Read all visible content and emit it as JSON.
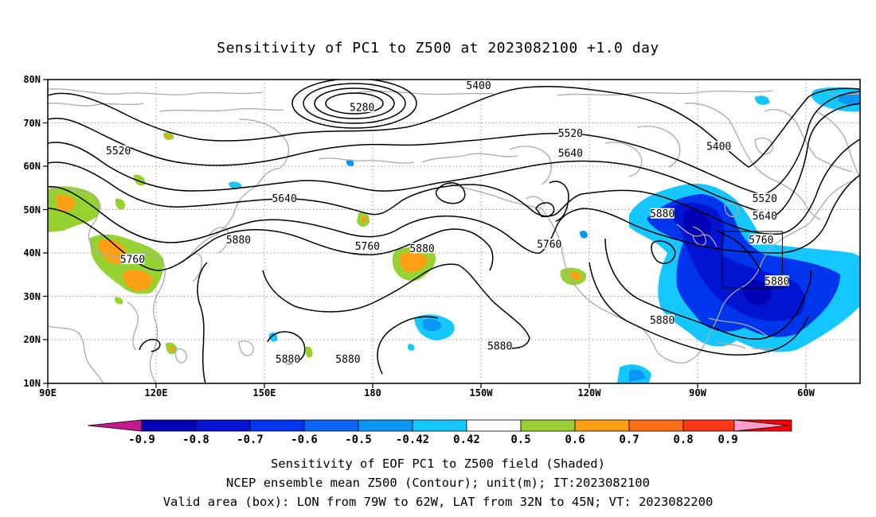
{
  "title": "Sensitivity of PC1 to Z500 at 2023082100 +1.0 day",
  "axes": {
    "lat_labels": [
      "80N",
      "70N",
      "60N",
      "50N",
      "40N",
      "30N",
      "20N",
      "10N"
    ],
    "lon_labels": [
      "90E",
      "120E",
      "150E",
      "180",
      "150W",
      "120W",
      "90W",
      "60W"
    ]
  },
  "contours": {
    "unit": "m",
    "labels": [
      {
        "text": "5280",
        "lon": 179,
        "lat": 73.5
      },
      {
        "text": "5400",
        "lon": -148,
        "lat": 78.5
      },
      {
        "text": "5400",
        "lon": -80,
        "lat": 64.5
      },
      {
        "text": "5520",
        "lon": 110,
        "lat": 63.5
      },
      {
        "text": "5520",
        "lon": -122,
        "lat": 67.5
      },
      {
        "text": "5520",
        "lon": -67,
        "lat": 52.5
      },
      {
        "text": "5640",
        "lon": 157,
        "lat": 52.5
      },
      {
        "text": "5640",
        "lon": -122,
        "lat": 63.0
      },
      {
        "text": "5640",
        "lon": -67,
        "lat": 48.5
      },
      {
        "text": "5760",
        "lon": 114,
        "lat": 38.5
      },
      {
        "text": "5760",
        "lon": 180.5,
        "lat": 41.5
      },
      {
        "text": "5760",
        "lon": -128,
        "lat": 42.0
      },
      {
        "text": "5760",
        "lon": -68,
        "lat": 43.0
      },
      {
        "text": "5880",
        "lon": 144,
        "lat": 43.0
      },
      {
        "text": "5880",
        "lon": -164,
        "lat": 41.0
      },
      {
        "text": "5880",
        "lon": -96,
        "lat": 49.0
      },
      {
        "text": "5880",
        "lon": -96,
        "lat": 24.5
      },
      {
        "text": "5880",
        "lon": -63.5,
        "lat": 33.5
      },
      {
        "text": "5880",
        "lon": -142,
        "lat": 18.5
      },
      {
        "text": "5880",
        "lon": 158,
        "lat": 15.5
      },
      {
        "text": "5880",
        "lon": 175,
        "lat": 15.5
      }
    ]
  },
  "colorbar": {
    "labels": [
      "-0.9",
      "-0.8",
      "-0.7",
      "-0.6",
      "-0.5",
      "-0.42",
      "0.42",
      "0.5",
      "0.6",
      "0.7",
      "0.8",
      "0.9"
    ],
    "colors": {
      "below": "#c6198f",
      "bins": [
        "#0000b4",
        "#0014d2",
        "#0035ee",
        "#0a64f5",
        "#0a96f5",
        "#14c8ff",
        "#ffffff",
        "#96d232",
        "#ffa014",
        "#ff6e14",
        "#ff3714",
        "#ff0000"
      ],
      "above": "#ff9ecb"
    }
  },
  "valid_box": {
    "lon_west": -79,
    "lon_east": -62,
    "lat_south": 32,
    "lat_north": 45
  },
  "footer": {
    "line1": "Sensitivity of EOF PC1 to Z500 field (Shaded)",
    "line2": "NCEP ensemble mean Z500 (Contour); unit(m); IT:2023082100",
    "line3": "Valid area (box): LON from 79W to 62W, LAT from 32N to 45N; VT: 2023082200"
  }
}
